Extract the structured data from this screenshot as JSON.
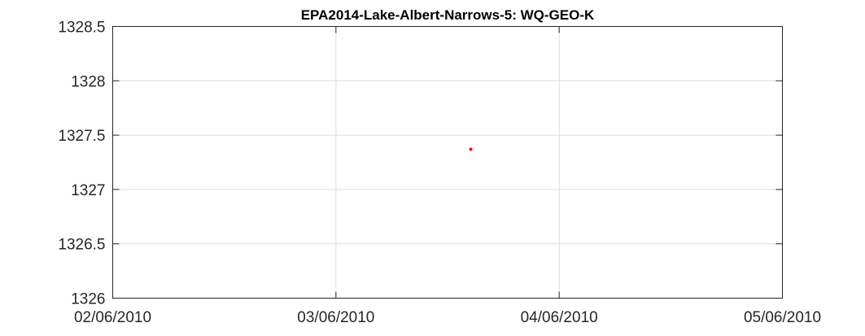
{
  "chart_data": {
    "type": "scatter",
    "title": "EPA2014-Lake-Albert-Narrows-5: WQ-GEO-K",
    "xlabel": "",
    "ylabel": "",
    "x_type": "date",
    "xlim": [
      "2010-06-02",
      "2010-06-05"
    ],
    "ylim": [
      1326,
      1328.5
    ],
    "x_ticks": [
      "2010-06-02",
      "2010-06-03",
      "2010-06-04",
      "2010-06-05"
    ],
    "x_tick_labels": [
      "02/06/2010",
      "03/06/2010",
      "04/06/2010",
      "05/06/2010"
    ],
    "y_ticks": [
      1326,
      1326.5,
      1327,
      1327.5,
      1328,
      1328.5
    ],
    "y_tick_labels": [
      "1326",
      "1326.5",
      "1327",
      "1327.5",
      "1328",
      "1328.5"
    ],
    "grid": true,
    "marker_color": "#ff0000",
    "series": [
      {
        "x": [
          "2010-06-03 14:30"
        ],
        "y": [
          1327.37
        ]
      }
    ]
  }
}
